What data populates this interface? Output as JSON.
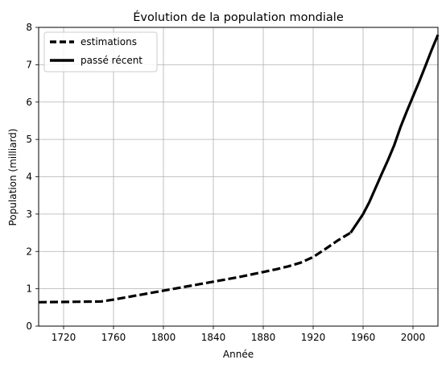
{
  "chart_data": {
    "type": "line",
    "title": "Évolution de la population mondiale",
    "xlabel": "Année",
    "ylabel": "Population (milliard)",
    "xlim": [
      1700,
      2020
    ],
    "ylim": [
      0,
      8
    ],
    "xticks": [
      1720,
      1760,
      1800,
      1840,
      1880,
      1920,
      1960,
      2000
    ],
    "yticks": [
      0,
      1,
      2,
      3,
      4,
      5,
      6,
      7,
      8
    ],
    "grid": true,
    "legend_position": "top-left",
    "series": [
      {
        "name": "estimations",
        "style": "dashed",
        "color": "#000000",
        "x": [
          1700,
          1750,
          1760,
          1770,
          1780,
          1790,
          1800,
          1810,
          1820,
          1830,
          1840,
          1850,
          1860,
          1870,
          1880,
          1890,
          1900,
          1910,
          1920,
          1930,
          1940,
          1950
        ],
        "y": [
          0.64,
          0.66,
          0.71,
          0.77,
          0.83,
          0.89,
          0.95,
          1.01,
          1.07,
          1.13,
          1.19,
          1.25,
          1.31,
          1.38,
          1.45,
          1.52,
          1.6,
          1.7,
          1.85,
          2.07,
          2.3,
          2.5
        ]
      },
      {
        "name": "passé récent",
        "style": "solid",
        "color": "#000000",
        "x": [
          1950,
          1955,
          1960,
          1965,
          1970,
          1975,
          1980,
          1985,
          1990,
          1995,
          2000,
          2005,
          2010,
          2015,
          2020
        ],
        "y": [
          2.5,
          2.75,
          3.0,
          3.32,
          3.7,
          4.08,
          4.45,
          4.85,
          5.33,
          5.75,
          6.15,
          6.55,
          6.97,
          7.4,
          7.8
        ]
      }
    ]
  }
}
